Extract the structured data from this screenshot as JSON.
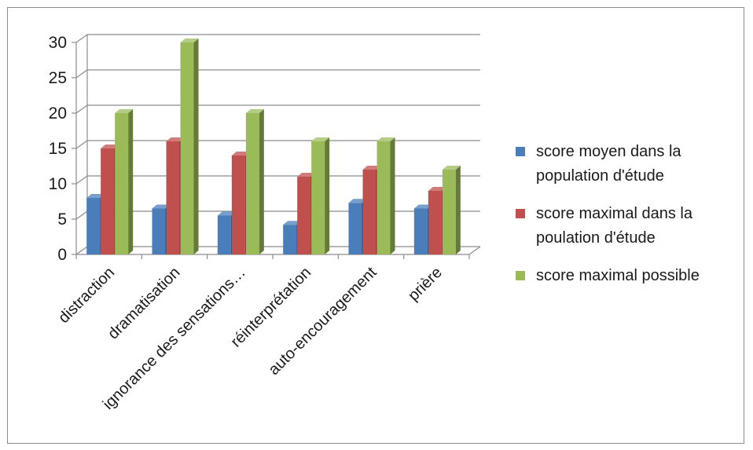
{
  "chart_data": {
    "type": "bar",
    "title": "",
    "xlabel": "",
    "ylabel": "",
    "categories": [
      "distraction",
      "dramatisation",
      "ignorance des sensations…",
      "réinterprétation",
      "auto-encouragement",
      "prière"
    ],
    "series": [
      {
        "name": "score moyen dans la population d'étude",
        "color": "#4a7ebb",
        "values": [
          8,
          6.5,
          5.5,
          4.2,
          7.3,
          6.5
        ]
      },
      {
        "name": "score maximal dans la poulation d'étude",
        "color": "#c0504d",
        "values": [
          15,
          16,
          14,
          11,
          12,
          9
        ]
      },
      {
        "name": "score maximal possible",
        "color": "#9bbb59",
        "values": [
          20,
          30,
          20,
          16,
          16,
          12
        ]
      }
    ],
    "y_ticks": [
      "0",
      "5",
      "10",
      "15",
      "20",
      "25",
      "30"
    ],
    "ylim": [
      0,
      30
    ],
    "grid": true,
    "style": "3d-clustered-columns",
    "legend_position": "right"
  }
}
